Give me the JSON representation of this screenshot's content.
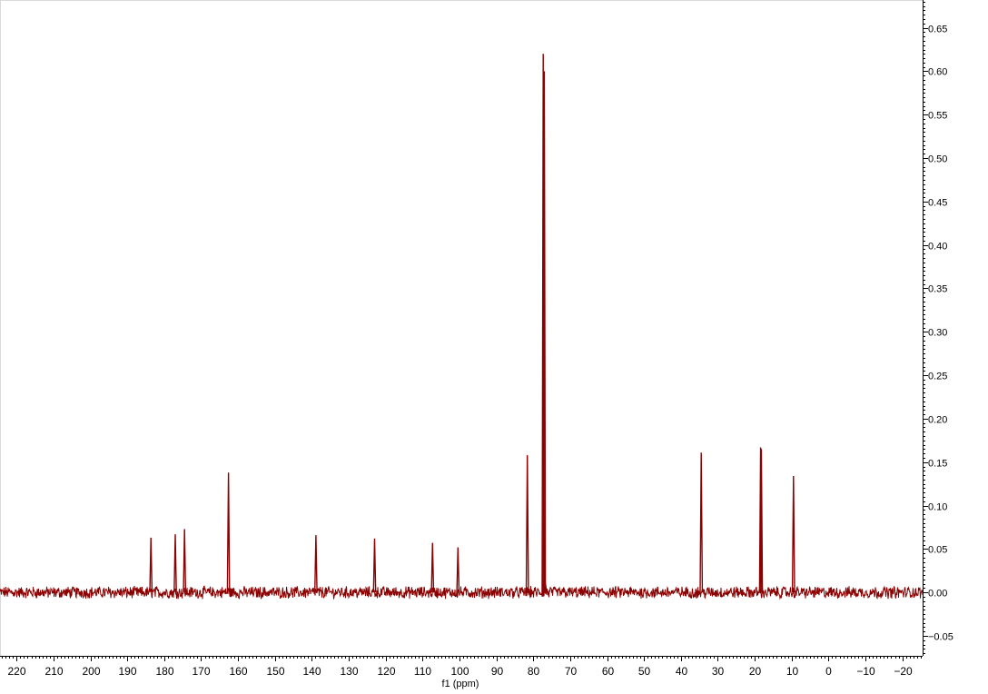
{
  "chart_data": {
    "type": "line",
    "title": "",
    "xlabel": "f1 (ppm)",
    "ylabel": "",
    "x_reversed": true,
    "xlim": [
      224.5,
      -25.5
    ],
    "ylim": [
      -0.073,
      0.682
    ],
    "x_ticks": [
      220,
      210,
      200,
      190,
      180,
      170,
      160,
      150,
      140,
      130,
      120,
      110,
      100,
      90,
      80,
      70,
      60,
      50,
      40,
      30,
      20,
      10,
      0,
      -10,
      -20
    ],
    "x_tick_labels": [
      "220",
      "210",
      "200",
      "190",
      "180",
      "170",
      "160",
      "150",
      "140",
      "130",
      "120",
      "110",
      "100",
      "90",
      "80",
      "70",
      "60",
      "50",
      "40",
      "30",
      "20",
      "10",
      "0",
      "−10",
      "−20"
    ],
    "y_ticks": [
      0.65,
      0.6,
      0.55,
      0.5,
      0.45,
      0.4,
      0.35,
      0.3,
      0.25,
      0.2,
      0.15,
      0.1,
      0.05,
      0.0,
      -0.05
    ],
    "y_tick_labels": [
      "0.65",
      "0.60",
      "0.55",
      "0.50",
      "0.45",
      "0.40",
      "0.35",
      "0.30",
      "0.25",
      "0.20",
      "0.15",
      "0.10",
      "0.05",
      "0.00",
      "−0.05"
    ],
    "grid": false,
    "line_color": "#8b0000",
    "noise_amplitude": 0.006,
    "peaks": [
      {
        "ppm": 183.6,
        "intensity": 0.063
      },
      {
        "ppm": 177.0,
        "intensity": 0.067
      },
      {
        "ppm": 174.5,
        "intensity": 0.073
      },
      {
        "ppm": 162.6,
        "intensity": 0.138
      },
      {
        "ppm": 138.9,
        "intensity": 0.066
      },
      {
        "ppm": 123.0,
        "intensity": 0.062
      },
      {
        "ppm": 107.3,
        "intensity": 0.057
      },
      {
        "ppm": 100.4,
        "intensity": 0.052
      },
      {
        "ppm": 81.6,
        "intensity": 0.158
      },
      {
        "ppm": 77.3,
        "intensity": 0.62
      },
      {
        "ppm": 77.0,
        "intensity": 0.6
      },
      {
        "ppm": 76.7,
        "intensity": 0.01
      },
      {
        "ppm": 34.5,
        "intensity": 0.161
      },
      {
        "ppm": 18.4,
        "intensity": 0.167
      },
      {
        "ppm": 18.2,
        "intensity": 0.165
      },
      {
        "ppm": 9.5,
        "intensity": 0.134
      }
    ]
  }
}
